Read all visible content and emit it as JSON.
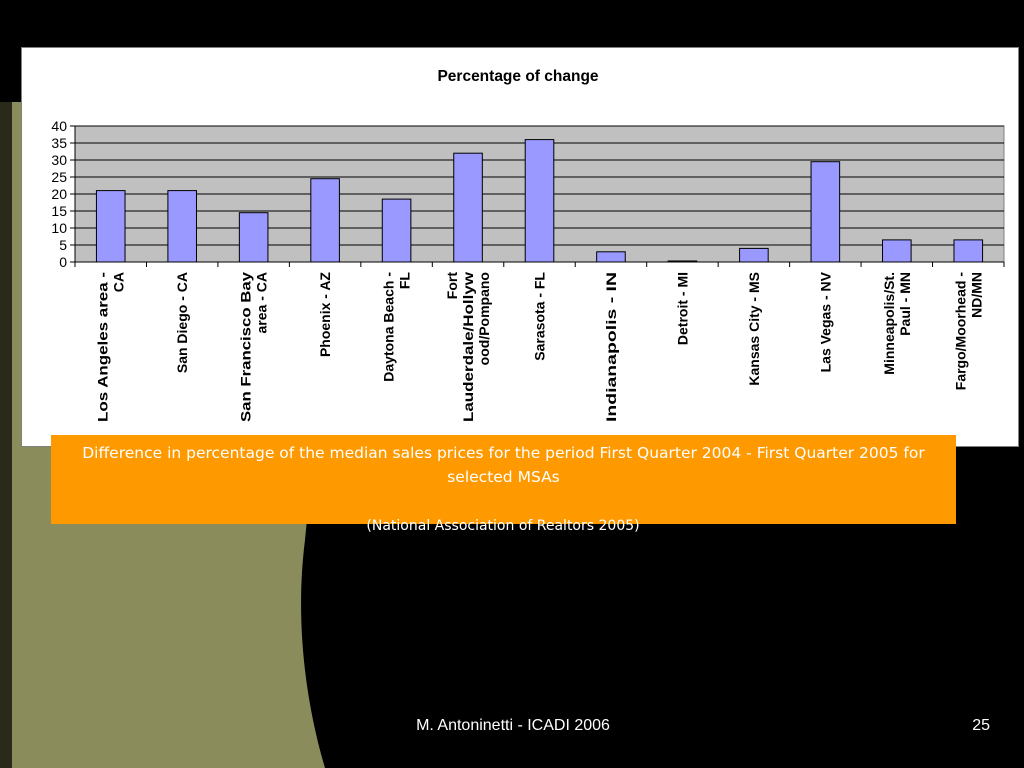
{
  "slide": {
    "caption": "Difference in percentage of the median sales prices for the period First Quarter 2004 - First Quarter 2005 for selected MSAs",
    "source": "(National Association of Realtors 2005)",
    "footer_author": "M. Antoninetti - ICADI 2006",
    "page_number": "25"
  },
  "colors": {
    "background": "#000000",
    "olive": "#8a8c5c",
    "caption_box": "#ff9900",
    "bar_fill": "#9999ff",
    "plot_area": "#c0c0c0"
  },
  "chart_data": {
    "type": "bar",
    "title": "Percentage of change",
    "xlabel": "",
    "ylabel": "",
    "ylim": [
      0,
      40
    ],
    "yticks": [
      0,
      5,
      10,
      15,
      20,
      25,
      30,
      35,
      40
    ],
    "grid": true,
    "legend": "none",
    "categories": [
      "Los Angeles area - CA",
      "San Diego - CA",
      "San Francisco Bay area - CA",
      "Phoenix - AZ",
      "Daytona Beach - FL",
      "Fort Lauderdale/Hollywood/Pompano",
      "Sarasota - FL",
      "Indianapolis - IN",
      "Detroit - MI",
      "Kansas City - MS",
      "Las Vegas - NV",
      "Minneapolis/St. Paul - MN",
      "Fargo/Moorhead - ND/MN"
    ],
    "category_lines": [
      [
        "Los Angeles area -",
        "CA"
      ],
      [
        "San Diego - CA"
      ],
      [
        "San Francisco Bay",
        "area - CA"
      ],
      [
        "Phoenix - AZ"
      ],
      [
        "Daytona Beach -",
        "FL"
      ],
      [
        "Fort",
        "Lauderdale/Hollyw",
        "ood/Pompano"
      ],
      [
        "Sarasota - FL"
      ],
      [
        "Indianapolis - IN"
      ],
      [
        "Detroit - MI"
      ],
      [
        "Kansas City - MS"
      ],
      [
        "Las Vegas - NV"
      ],
      [
        "Minneapolis/St.",
        "Paul - MN"
      ],
      [
        "Fargo/Moorhead -",
        "ND/MN"
      ]
    ],
    "values": [
      21,
      21,
      14.5,
      24.5,
      18.5,
      32,
      36,
      3,
      0.3,
      4,
      29.5,
      6.5,
      6.5
    ]
  }
}
